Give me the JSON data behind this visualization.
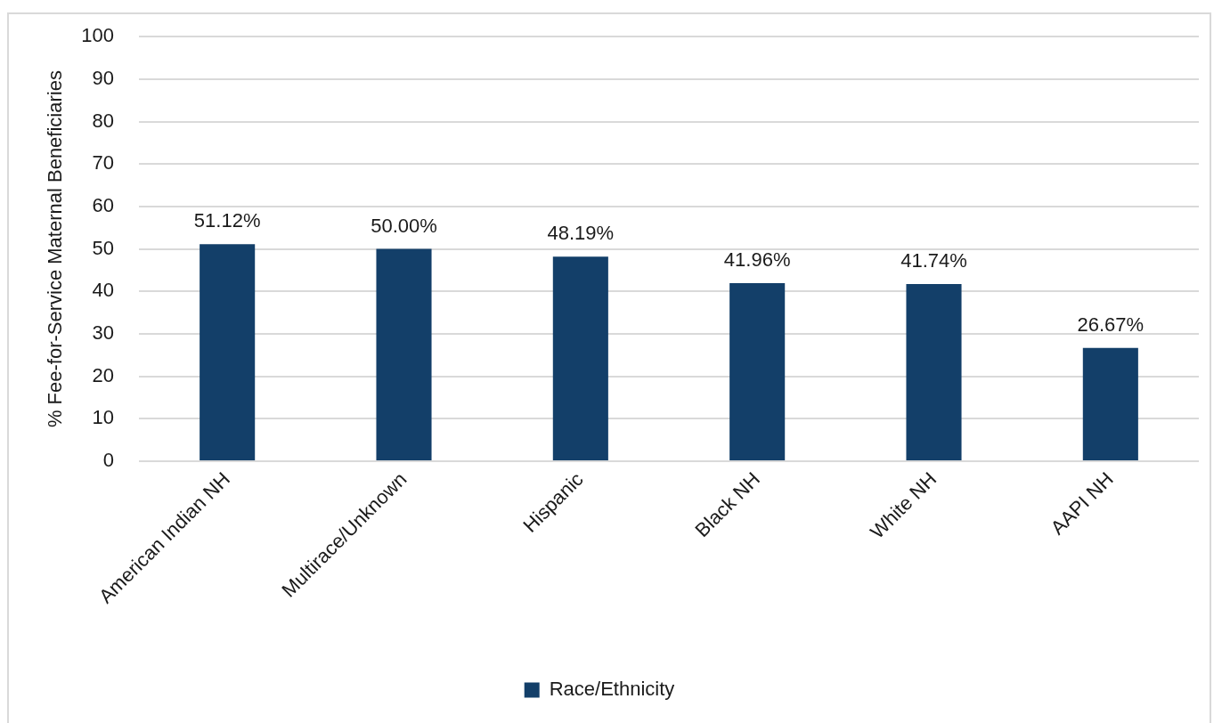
{
  "chart_data": {
    "type": "bar",
    "ylabel": "% Fee-for-Service Maternal Beneficiaries",
    "categories": [
      "American Indian NH",
      "Multirace/Unknown",
      "Hispanic",
      "Black NH",
      "White NH",
      "AAPI NH"
    ],
    "series": [
      {
        "name": "Race/Ethnicity",
        "color": "#133f69",
        "values": [
          51.12,
          50.0,
          48.19,
          41.96,
          41.74,
          26.67
        ],
        "value_labels": [
          "51.12%",
          "50.00%",
          "48.19%",
          "41.96%",
          "41.74%",
          "26.67%"
        ]
      }
    ],
    "ylim": [
      0,
      100
    ],
    "yticks": [
      0,
      10,
      20,
      30,
      40,
      50,
      60,
      70,
      80,
      90,
      100
    ],
    "grid": "y",
    "legend": "bottom"
  }
}
